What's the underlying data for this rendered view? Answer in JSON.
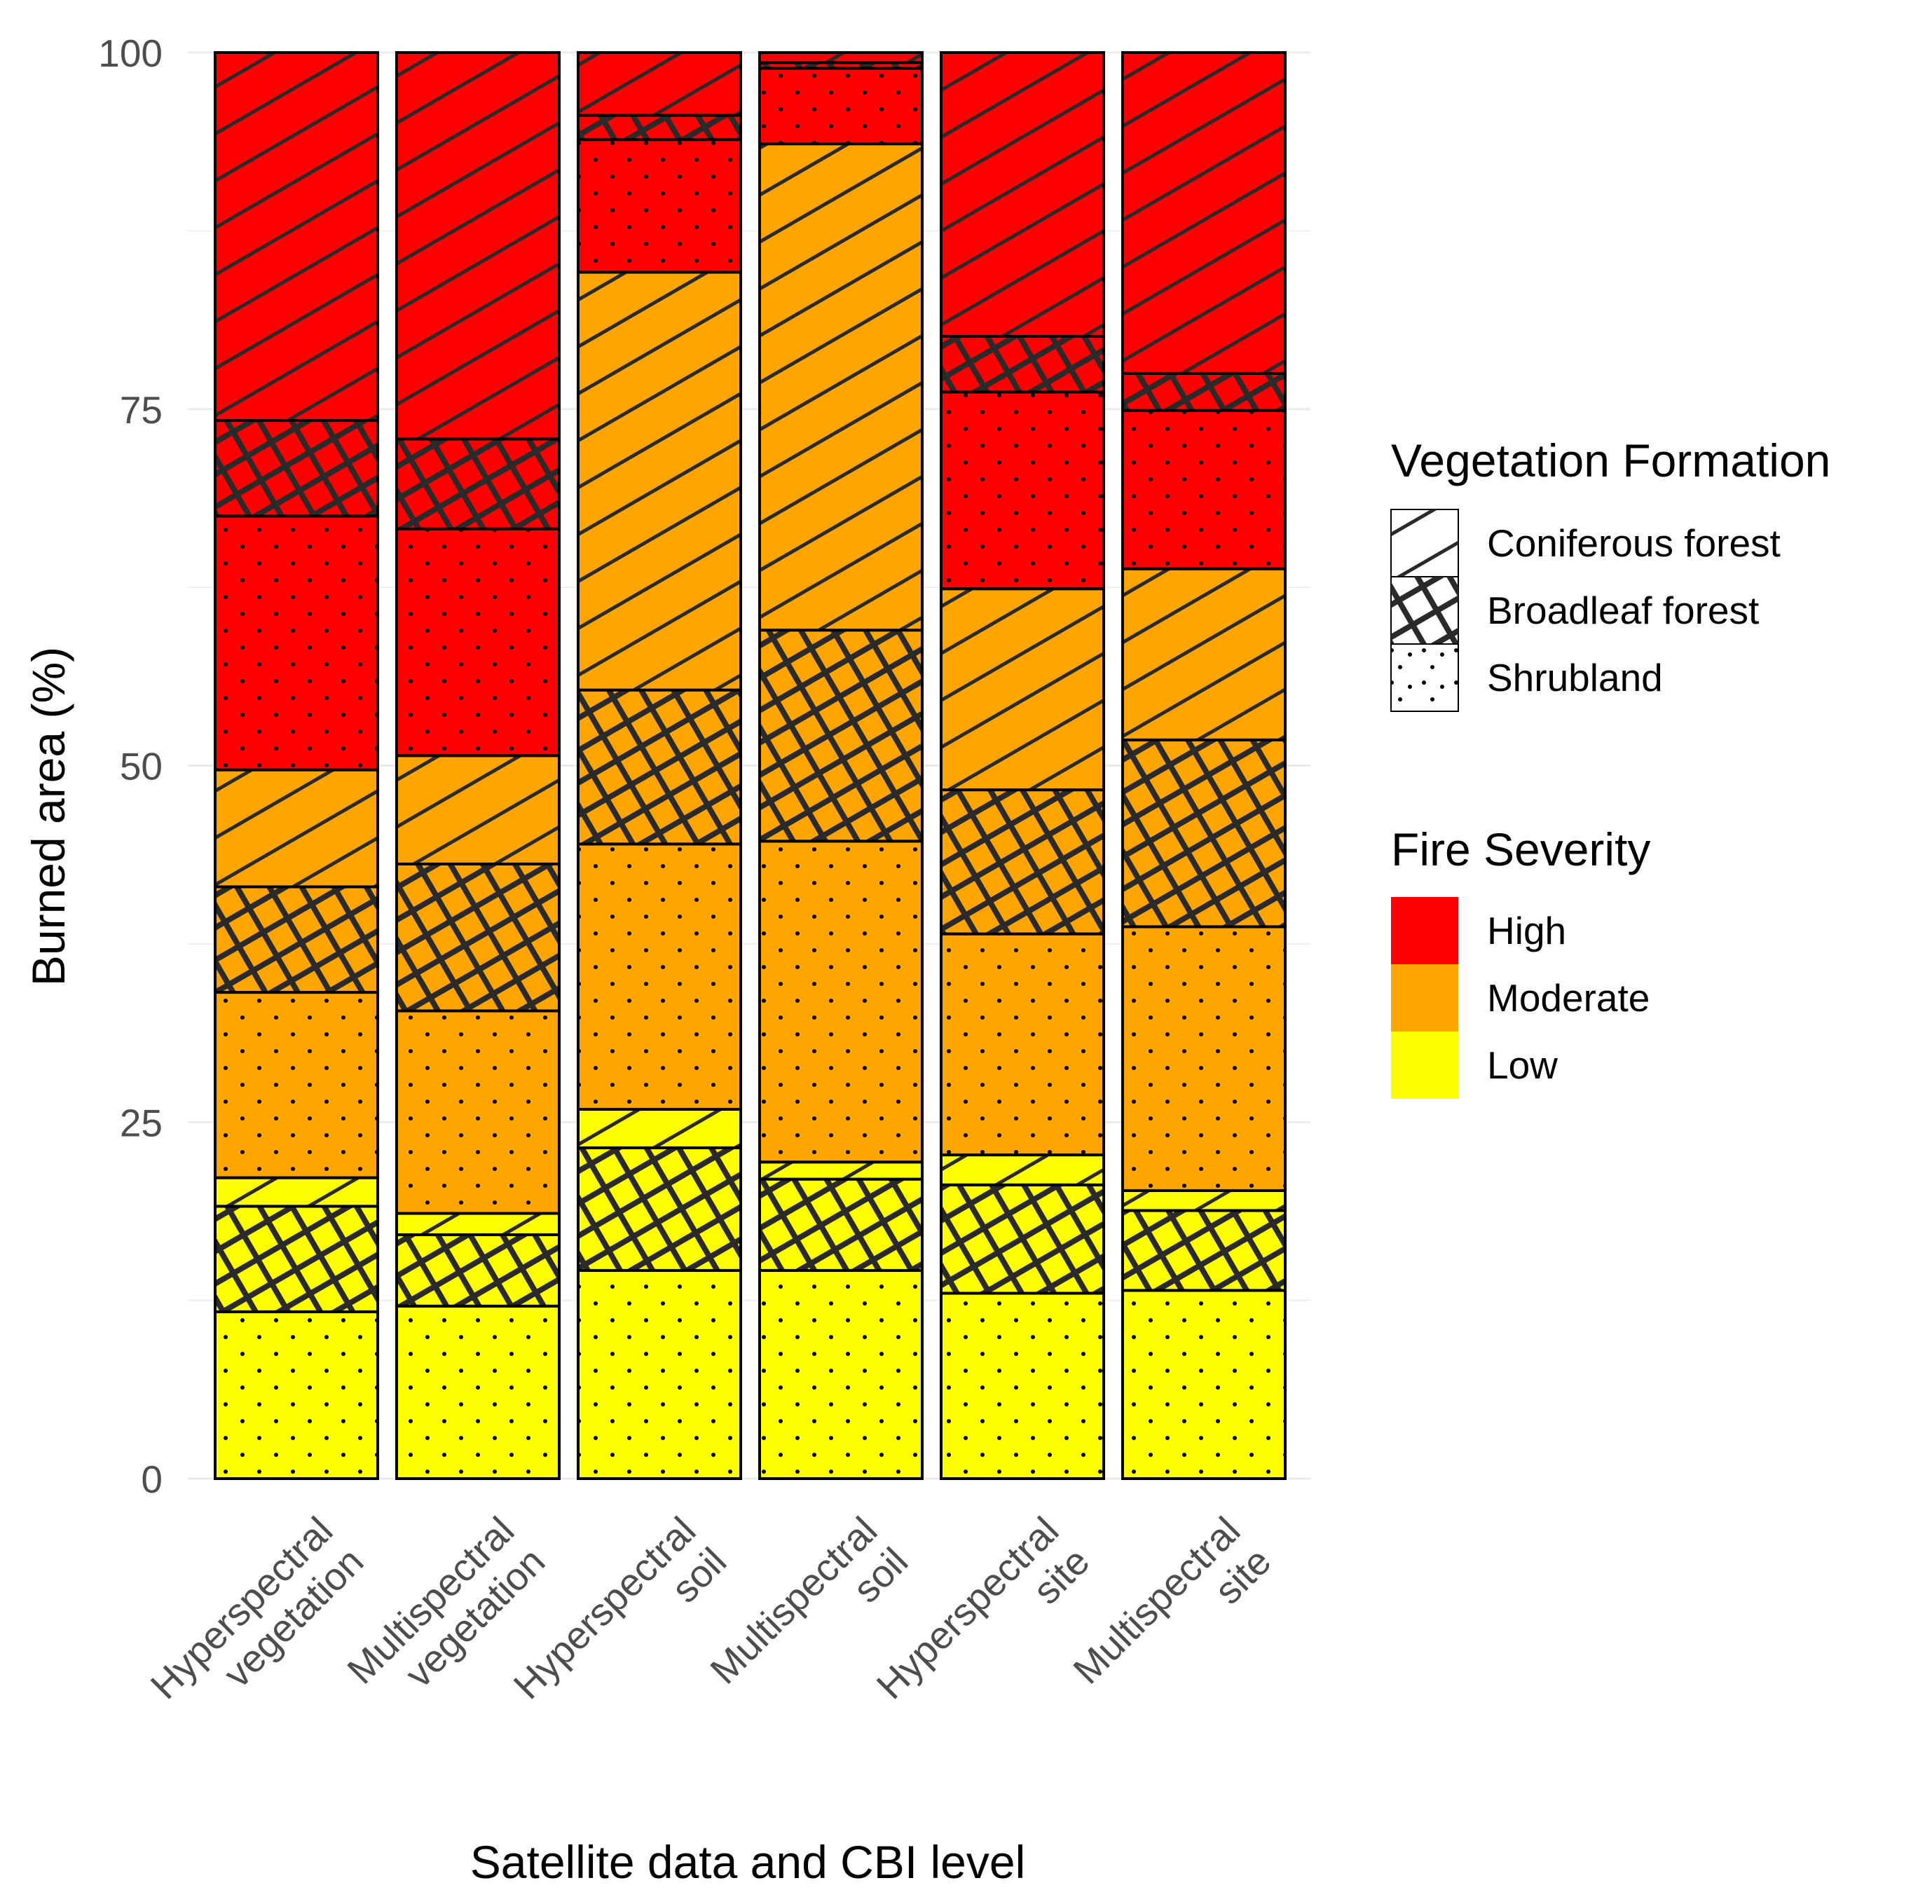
{
  "chart_data": {
    "type": "bar",
    "stacked": true,
    "xlabel": "Satellite data and CBI level",
    "ylabel": "Burned area (%)",
    "ylim": [
      0,
      100
    ],
    "yticks": [
      0,
      25,
      50,
      75,
      100
    ],
    "categories": [
      [
        "Hyperspectral",
        "vegetation"
      ],
      [
        "Multispectral",
        "vegetation"
      ],
      [
        "Hyperspectral",
        "soil"
      ],
      [
        "Multispectral",
        "soil"
      ],
      [
        "Hyperspectral",
        "site"
      ],
      [
        "Multispectral",
        "site"
      ]
    ],
    "segment_order": [
      {
        "severity": "Low",
        "formation": "Shrubland"
      },
      {
        "severity": "Low",
        "formation": "Broadleaf forest"
      },
      {
        "severity": "Low",
        "formation": "Coniferous forest"
      },
      {
        "severity": "Moderate",
        "formation": "Shrubland"
      },
      {
        "severity": "Moderate",
        "formation": "Broadleaf forest"
      },
      {
        "severity": "Moderate",
        "formation": "Coniferous forest"
      },
      {
        "severity": "High",
        "formation": "Shrubland"
      },
      {
        "severity": "High",
        "formation": "Broadleaf forest"
      },
      {
        "severity": "High",
        "formation": "Coniferous forest"
      }
    ],
    "values": [
      [
        11.7,
        7.4,
        2.0,
        13.0,
        7.4,
        8.2,
        17.8,
        6.7,
        25.8
      ],
      [
        12.1,
        5.0,
        1.5,
        14.2,
        10.3,
        7.6,
        15.9,
        6.3,
        27.1
      ],
      [
        14.6,
        8.6,
        2.7,
        18.6,
        10.8,
        29.3,
        9.3,
        1.7,
        4.4
      ],
      [
        14.6,
        6.4,
        1.2,
        22.5,
        14.8,
        34.1,
        5.3,
        0.4,
        0.7
      ],
      [
        13.0,
        7.6,
        2.1,
        15.5,
        10.1,
        14.1,
        13.8,
        3.9,
        19.9
      ],
      [
        13.2,
        5.6,
        1.4,
        18.5,
        13.1,
        12.0,
        11.1,
        2.6,
        22.5
      ]
    ],
    "legend": {
      "formation_title": "Vegetation Formation",
      "formations": [
        "Coniferous forest",
        "Broadleaf forest",
        "Shrubland"
      ],
      "severity_title": "Fire Severity",
      "severities": [
        "High",
        "Moderate",
        "Low"
      ]
    },
    "colors": {
      "High": "#ff0000",
      "Moderate": "#ffa500",
      "Low": "#ffff00"
    }
  }
}
